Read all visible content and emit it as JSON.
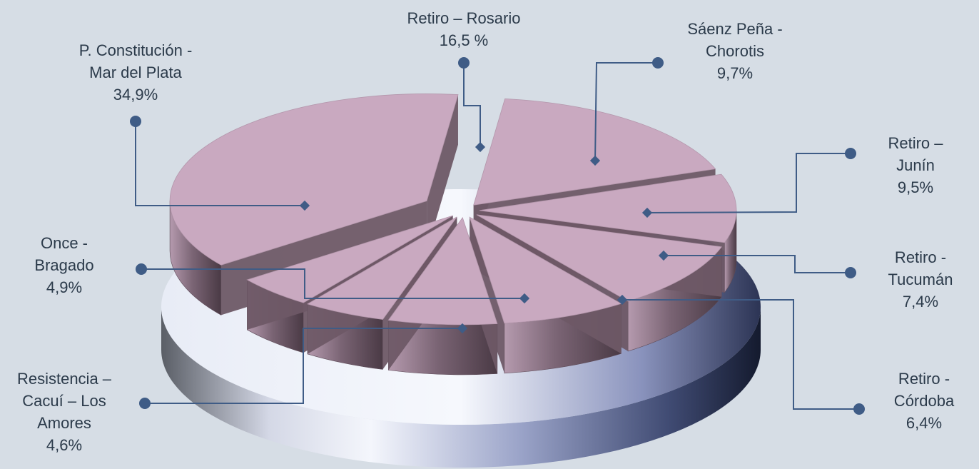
{
  "chart_data": {
    "type": "pie",
    "title": "",
    "style": "3d-exploded",
    "slices": [
      {
        "name": "Retiro – Rosario",
        "lines": [
          "Retiro – Rosario",
          "16,5 %"
        ],
        "value": 16.5
      },
      {
        "name": "Sáenz Peña - Chorotis",
        "lines": [
          "Sáenz Peña -",
          "Chorotis",
          "9,7%"
        ],
        "value": 9.7
      },
      {
        "name": "Retiro – Junín",
        "lines": [
          "Retiro –",
          "Junín",
          "9,5%"
        ],
        "value": 9.5
      },
      {
        "name": "Retiro - Tucumán",
        "lines": [
          "Retiro -",
          "Tucumán",
          "7,4%"
        ],
        "value": 7.4
      },
      {
        "name": "Retiro - Córdoba",
        "lines": [
          "Retiro -",
          "Córdoba",
          "6,4%"
        ],
        "value": 6.4
      },
      {
        "name": "Once - Bragado",
        "lines": [
          "Once -",
          "Bragado",
          "4,9%"
        ],
        "value": 4.9
      },
      {
        "name": "Resistencia – Cacuí – Los Amores",
        "lines": [
          "Resistencia –",
          "Cacuí – Los",
          "Amores",
          "4,6%"
        ],
        "value": 4.6
      },
      {
        "name": "P. Constitución - Mar del Plata",
        "lines": [
          "P. Constitución -",
          "Mar del Plata",
          "34,9%"
        ],
        "value": 34.9
      }
    ],
    "colors": {
      "slice_top": "#c9a9c0",
      "slice_side": "#6e5866",
      "leader": "#3f5c86",
      "label_text": "#2b3a4a",
      "background": "#d6dde5"
    }
  }
}
